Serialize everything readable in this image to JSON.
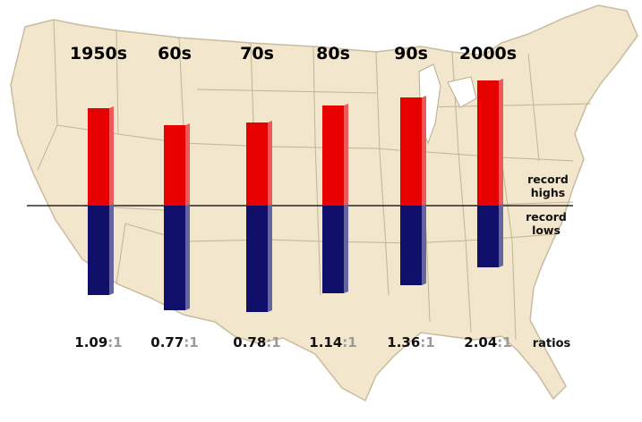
{
  "colors": {
    "high": "#e60000",
    "low": "#10106a",
    "map_fill": "#f2e6cc",
    "map_border": "#b8ab92",
    "ratio_grey": "#9a9a9a"
  },
  "labels": {
    "record_highs": [
      "record",
      "highs"
    ],
    "record_lows": [
      "record",
      "lows"
    ],
    "ratios": "ratios"
  },
  "chart_data": {
    "type": "bar",
    "categories": [
      "1950s",
      "60s",
      "70s",
      "80s",
      "90s",
      "2000s"
    ],
    "series": [
      {
        "name": "record highs",
        "values": [
          109,
          90,
          93,
          112,
          121,
          140
        ]
      },
      {
        "name": "record lows",
        "values": [
          100,
          117,
          119,
          98,
          89,
          69
        ]
      }
    ],
    "ratios": [
      {
        "value": "1.09",
        "suffix": ":1"
      },
      {
        "value": "0.77",
        "suffix": ":1"
      },
      {
        "value": "0.78",
        "suffix": ":1"
      },
      {
        "value": "1.14",
        "suffix": ":1"
      },
      {
        "value": "1.36",
        "suffix": ":1"
      },
      {
        "value": "2.04",
        "suffix": ":1"
      }
    ],
    "baseline": 0
  }
}
